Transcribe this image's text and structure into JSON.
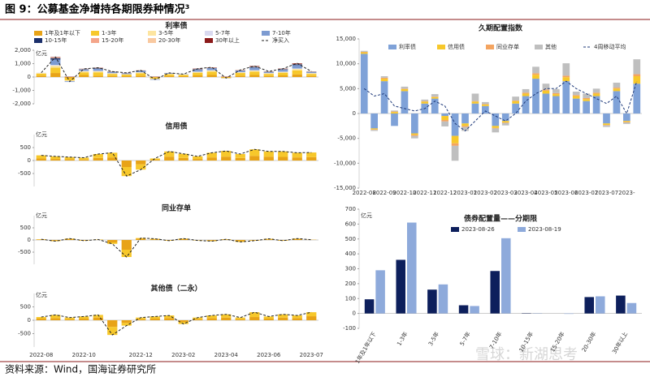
{
  "title": "图 9：公募基金净增持各期限券种情况³",
  "source": "资料来源：Wind，国海证券研究所",
  "watermark": "雪球：新湖思考",
  "chart_data": [
    {
      "type": "stacked_bar",
      "title": "利率债",
      "unit": "亿元",
      "legend": true,
      "ylim": [
        -2000,
        2000
      ],
      "yticks": [
        {
          "value": -2000,
          "label": "-2,000"
        },
        {
          "value": -1000,
          "label": "-1,000"
        },
        0,
        {
          "value": 1000,
          "label": "1,000"
        },
        {
          "value": 2000,
          "label": "2,000"
        }
      ],
      "series": [
        {
          "name": "1年及1年以下",
          "color": "#e8a317",
          "values": [
            100,
            300,
            -100,
            150,
            100,
            80,
            60,
            100,
            -50,
            80,
            60,
            120,
            150,
            -30,
            100,
            150,
            80,
            120,
            200,
            80
          ]
        },
        {
          "name": "1-3年",
          "color": "#f7c82b",
          "values": [
            150,
            400,
            -150,
            200,
            250,
            150,
            120,
            180,
            -80,
            120,
            100,
            200,
            250,
            -50,
            200,
            250,
            150,
            200,
            300,
            150
          ]
        },
        {
          "name": "3-5年",
          "color": "#fde5a0",
          "values": [
            50,
            150,
            -50,
            80,
            80,
            40,
            30,
            60,
            -30,
            40,
            30,
            60,
            80,
            -20,
            50,
            80,
            50,
            60,
            100,
            50
          ]
        },
        {
          "name": "5-7年",
          "color": "#d9d9ef",
          "values": [
            20,
            60,
            -20,
            30,
            30,
            20,
            10,
            20,
            -10,
            10,
            10,
            20,
            30,
            -10,
            20,
            30,
            20,
            20,
            40,
            20
          ]
        },
        {
          "name": "7-10年",
          "color": "#7d9bd1",
          "values": [
            0,
            400,
            -50,
            100,
            150,
            80,
            60,
            100,
            -40,
            40,
            20,
            150,
            150,
            -10,
            100,
            200,
            80,
            150,
            250,
            80
          ]
        },
        {
          "name": "10-15年",
          "color": "#1b2f6b",
          "values": [
            0,
            100,
            0,
            20,
            40,
            20,
            10,
            20,
            0,
            10,
            0,
            30,
            20,
            0,
            20,
            40,
            10,
            30,
            60,
            10
          ]
        },
        {
          "name": "15-20年",
          "color": "#f4a58a",
          "values": [
            0,
            20,
            0,
            5,
            5,
            5,
            0,
            5,
            0,
            0,
            0,
            5,
            5,
            0,
            5,
            5,
            0,
            5,
            10,
            0
          ]
        },
        {
          "name": "20-30年",
          "color": "#f9c9a0",
          "values": [
            0,
            40,
            10,
            20,
            20,
            10,
            10,
            10,
            10,
            10,
            0,
            20,
            20,
            20,
            20,
            40,
            20,
            20,
            30,
            20
          ]
        },
        {
          "name": "30年以上",
          "color": "#8b1a1a",
          "values": [
            0,
            30,
            20,
            10,
            20,
            5,
            10,
            5,
            20,
            0,
            0,
            20,
            20,
            20,
            10,
            30,
            10,
            20,
            40,
            10
          ]
        },
        {
          "name": "净买入",
          "type": "line",
          "dash": true,
          "color": "#222222",
          "values": [
            320,
            1500,
            -340,
            615,
            695,
            410,
            310,
            500,
            -180,
            310,
            220,
            625,
            725,
            -80,
            525,
            825,
            420,
            625,
            1030,
            420
          ]
        }
      ]
    },
    {
      "type": "stacked_bar",
      "title": "信用债",
      "unit": "亿元",
      "legend": false,
      "ylim": [
        -1000,
        1000
      ],
      "yticks": [
        -500,
        0,
        500
      ],
      "series": [
        {
          "name": "1年及1年以下",
          "color": "#e8a317",
          "values": [
            80,
            60,
            50,
            40,
            100,
            120,
            -250,
            -150,
            30,
            150,
            100,
            60,
            120,
            150,
            100,
            180,
            150,
            140,
            120,
            130
          ]
        },
        {
          "name": "1-3年",
          "color": "#f7c82b",
          "values": [
            120,
            100,
            80,
            70,
            150,
            180,
            -350,
            -200,
            50,
            200,
            160,
            100,
            180,
            220,
            150,
            250,
            200,
            210,
            180,
            180
          ]
        },
        {
          "name": "净买入",
          "type": "line",
          "dash": true,
          "color": "#222222",
          "values": [
            200,
            160,
            130,
            110,
            250,
            300,
            -600,
            -350,
            80,
            350,
            260,
            160,
            300,
            370,
            250,
            430,
            350,
            350,
            300,
            310
          ]
        }
      ]
    },
    {
      "type": "stacked_bar",
      "title": "同业存单",
      "unit": "亿元",
      "legend": false,
      "ylim": [
        -1000,
        1000
      ],
      "yticks": [
        -500,
        0,
        500
      ],
      "series": [
        {
          "name": "1年及1年以下",
          "color": "#e8a317",
          "values": [
            20,
            -30,
            40,
            -20,
            10,
            -100,
            -400,
            50,
            30,
            -20,
            40,
            -10,
            -30,
            20,
            -50,
            -20,
            30,
            -20,
            40,
            10
          ]
        },
        {
          "name": "1-3年",
          "color": "#f7c82b",
          "values": [
            10,
            -20,
            20,
            -10,
            10,
            -60,
            -300,
            30,
            20,
            -10,
            20,
            -10,
            -20,
            10,
            -30,
            -10,
            20,
            -10,
            20,
            0
          ]
        },
        {
          "name": "净买入",
          "type": "line",
          "dash": true,
          "color": "#222222",
          "values": [
            30,
            -50,
            60,
            -30,
            20,
            -160,
            -700,
            80,
            50,
            -30,
            60,
            -20,
            -50,
            30,
            -80,
            -30,
            50,
            -30,
            60,
            10
          ]
        }
      ]
    },
    {
      "type": "stacked_bar",
      "title": "其他债（二永）",
      "unit": "亿元",
      "legend": false,
      "ylim": [
        -1000,
        1000
      ],
      "yticks": [
        -500,
        0,
        500
      ],
      "categories": [
        "2022-08",
        null,
        null,
        "2022-10",
        null,
        null,
        null,
        "2022-12",
        null,
        null,
        "2023-02",
        null,
        null,
        "2023-04",
        null,
        null,
        "2023-06",
        null,
        null,
        "2023-07"
      ],
      "series": [
        {
          "name": "1年及1年以下",
          "color": "#e8a317",
          "values": [
            60,
            80,
            40,
            60,
            100,
            -250,
            -100,
            40,
            60,
            80,
            -60,
            40,
            80,
            100,
            40,
            120,
            60,
            100,
            80,
            150
          ]
        },
        {
          "name": "1-3年",
          "color": "#f7c82b",
          "values": [
            60,
            120,
            60,
            80,
            100,
            -300,
            -100,
            60,
            80,
            100,
            -80,
            60,
            100,
            120,
            60,
            180,
            80,
            120,
            100,
            150
          ]
        },
        {
          "name": "净买入",
          "type": "line",
          "dash": true,
          "color": "#222222",
          "values": [
            120,
            200,
            100,
            140,
            200,
            -550,
            -200,
            100,
            140,
            180,
            -140,
            100,
            180,
            220,
            100,
            300,
            140,
            220,
            180,
            300
          ]
        }
      ]
    },
    {
      "type": "stacked_bar",
      "title": "久期配置指数",
      "legend": true,
      "ylim": [
        -15000,
        15000
      ],
      "yticks": [
        {
          "value": -15000,
          "label": "-15,000"
        },
        {
          "value": -10000,
          "label": "-10,000"
        },
        {
          "value": -5000,
          "label": "-5,000"
        },
        0,
        {
          "value": 5000,
          "label": "5,000"
        },
        {
          "value": 10000,
          "label": "10,000"
        },
        {
          "value": 15000,
          "label": "15,000"
        }
      ],
      "categories": [
        "2022-08",
        null,
        "2022-09",
        null,
        "2022-10",
        null,
        "2022-11",
        null,
        "2022-12",
        null,
        "2023-01",
        null,
        "2023-02",
        null,
        "2023-03",
        null,
        "2023-04",
        null,
        "2023-05",
        null,
        "2023-06",
        null,
        "2023-07",
        null,
        "2023-07",
        null,
        "2023-",
        null
      ],
      "series": [
        {
          "name": "利率债",
          "color": "#7fa2d8",
          "values": [
            12000,
            -3000,
            6500,
            -2500,
            4500,
            -4000,
            2000,
            3000,
            -500,
            -4500,
            -2000,
            2000,
            1500,
            -2500,
            -1500,
            2000,
            3500,
            7000,
            4000,
            3500,
            6500,
            3000,
            2500,
            3500,
            -2000,
            4500,
            -1500,
            6000
          ]
        },
        {
          "name": "信用债",
          "color": "#f7c82b",
          "values": [
            300,
            -200,
            500,
            300,
            400,
            -300,
            400,
            300,
            -800,
            -1500,
            -500,
            400,
            300,
            -400,
            -300,
            500,
            500,
            800,
            600,
            400,
            800,
            500,
            400,
            500,
            -300,
            500,
            -200,
            1500
          ]
        },
        {
          "name": "同业存单",
          "color": "#f4a460",
          "values": [
            100,
            -100,
            200,
            100,
            100,
            -200,
            100,
            100,
            -300,
            -500,
            -200,
            100,
            100,
            -100,
            -100,
            100,
            200,
            300,
            200,
            200,
            300,
            200,
            200,
            200,
            -100,
            200,
            -100,
            400
          ]
        },
        {
          "name": "其他",
          "color": "#bfbfbf",
          "values": [
            200,
            -200,
            300,
            200,
            400,
            -500,
            300,
            500,
            -1000,
            -3000,
            -800,
            1500,
            400,
            -800,
            -500,
            800,
            700,
            1300,
            1200,
            800,
            2500,
            700,
            900,
            800,
            -300,
            1000,
            -300,
            3000
          ]
        },
        {
          "name": "4周移动平均",
          "type": "line",
          "dash": true,
          "color": "#1f3a7a",
          "values": [
            5000,
            3500,
            4000,
            1500,
            1000,
            500,
            1000,
            2500,
            1500,
            -2000,
            -3500,
            -1500,
            500,
            -500,
            -1500,
            0,
            2500,
            4000,
            5000,
            5000,
            6500,
            5000,
            4000,
            3000,
            2000,
            3500,
            0,
            6500
          ]
        }
      ]
    },
    {
      "type": "grouped_bar",
      "title": "债券配置量——分期限",
      "unit": "亿元",
      "legend": true,
      "ylim": [
        -100,
        700
      ],
      "yticks": [
        -100,
        0,
        100,
        200,
        300,
        400,
        500,
        600,
        700
      ],
      "categories": [
        "1年及1年以下",
        "1-3年",
        "3-5年",
        "5-7年",
        "7-10年",
        "10-15年",
        "15-20年",
        "20-30年",
        "30年以上"
      ],
      "series": [
        {
          "name": "2023-08-26",
          "color": "#0d1f5c",
          "values": [
            95,
            360,
            160,
            55,
            285,
            2,
            0,
            110,
            120
          ]
        },
        {
          "name": "2023-08-19",
          "color": "#8eaadb",
          "values": [
            290,
            610,
            195,
            50,
            505,
            2,
            -3,
            115,
            70
          ]
        }
      ]
    }
  ]
}
